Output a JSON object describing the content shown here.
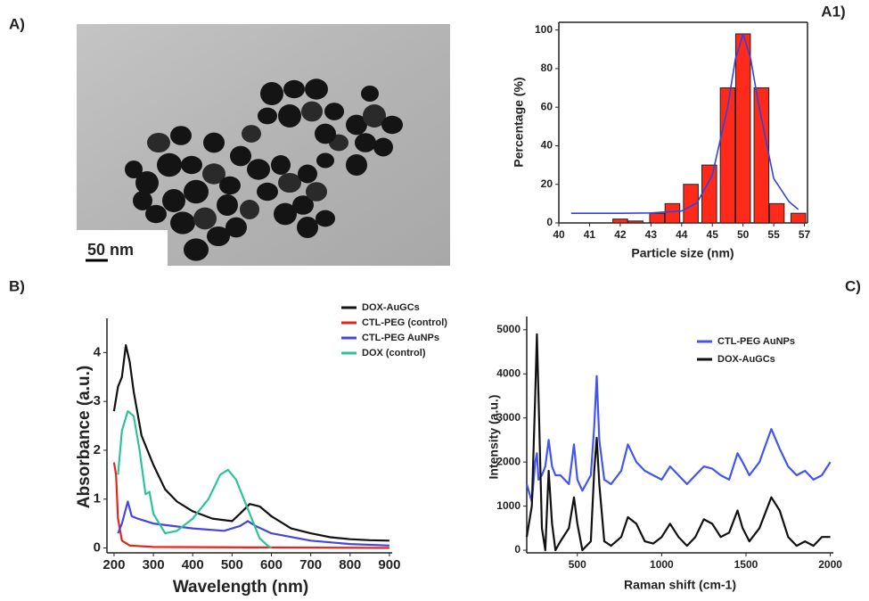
{
  "chart_data": [
    {
      "type": "image",
      "panel_label": "A)",
      "scale_bar": "50 nm"
    },
    {
      "type": "bar",
      "panel_label": "A1)",
      "x_label": "Particle size (nm)",
      "y_label": "Percentage (%)",
      "color": "#ff2a1a",
      "x": [
        2,
        2.5,
        3.2,
        3.7,
        4.3,
        4.9,
        5.5,
        6,
        6.6,
        7.1,
        7.8
      ],
      "values": [
        2,
        1,
        5,
        10,
        20,
        30,
        70,
        98,
        70,
        10,
        5
      ],
      "xlim": [
        0,
        8.1
      ],
      "xticks": [
        {
          "value": 0,
          "label": "40"
        },
        {
          "value": 1,
          "label": "41"
        },
        {
          "value": 2,
          "label": "42"
        },
        {
          "value": 3,
          "label": "43"
        },
        {
          "value": 4,
          "label": "44"
        },
        {
          "value": 5,
          "label": "45"
        },
        {
          "value": 6,
          "label": "50"
        },
        {
          "value": 7,
          "label": "55"
        },
        {
          "value": 8,
          "label": "57"
        }
      ],
      "ylim": [
        0,
        104
      ],
      "yticks": [
        0,
        20,
        40,
        60,
        80,
        100
      ],
      "fit": {
        "color": "#3344dd",
        "x": [
          0.4,
          2,
          3,
          4,
          4.5,
          5,
          5.5,
          5.75,
          6,
          6.25,
          6.5,
          7,
          7.5,
          7.8
        ],
        "values": [
          5,
          5,
          5.2,
          6.2,
          10.4,
          24.8,
          60,
          85,
          98,
          85,
          62,
          23,
          11,
          7
        ]
      }
    },
    {
      "type": "line",
      "panel_label": "B)",
      "x_label": "Wavelength (nm)",
      "y_label": "Absorbance (a.u.)",
      "xlim": [
        182,
        907
      ],
      "xticks": [
        200,
        300,
        400,
        500,
        600,
        700,
        800,
        900
      ],
      "ylim": [
        -0.1,
        4.7
      ],
      "yticks": [
        0,
        1,
        2,
        3,
        4
      ],
      "series": [
        {
          "name": "DOX-AuGCs",
          "color": "#111111",
          "x": [
            200,
            210,
            220,
            230,
            240,
            250,
            270,
            300,
            330,
            360,
            400,
            450,
            500,
            520,
            545,
            570,
            600,
            650,
            700,
            750,
            800,
            850,
            900
          ],
          "values": [
            2.8,
            3.3,
            3.5,
            4.15,
            3.8,
            3.2,
            2.3,
            1.7,
            1.2,
            0.95,
            0.75,
            0.6,
            0.55,
            0.7,
            0.9,
            0.85,
            0.65,
            0.4,
            0.3,
            0.22,
            0.18,
            0.16,
            0.15
          ]
        },
        {
          "name": "CTL-PEG (control)",
          "color": "#e8231c",
          "x": [
            200,
            205,
            210,
            220,
            240,
            300,
            900
          ],
          "values": [
            1.75,
            1.5,
            0.6,
            0.15,
            0.05,
            0.02,
            0
          ]
        },
        {
          "name": "CTL-PEG AuNPs",
          "color": "#4444e0",
          "x": [
            210,
            220,
            235,
            245,
            260,
            300,
            400,
            480,
            520,
            540,
            560,
            600,
            700,
            800,
            900
          ],
          "values": [
            0.3,
            0.5,
            0.95,
            0.65,
            0.6,
            0.5,
            0.4,
            0.35,
            0.45,
            0.55,
            0.45,
            0.3,
            0.15,
            0.08,
            0.05
          ]
        },
        {
          "name": "DOX (control)",
          "color": "#2dc39a",
          "x": [
            210,
            220,
            235,
            250,
            265,
            280,
            290,
            300,
            330,
            360,
            400,
            440,
            470,
            490,
            510,
            540,
            570,
            590,
            600
          ],
          "values": [
            1.5,
            2.4,
            2.8,
            2.7,
            2.0,
            1.1,
            1.15,
            0.7,
            0.3,
            0.35,
            0.6,
            1.0,
            1.5,
            1.6,
            1.4,
            0.8,
            0.2,
            0.05,
            0
          ]
        }
      ]
    },
    {
      "type": "line",
      "panel_label": "C)",
      "x_label": "Raman shift (cm-1)",
      "y_label": "Intensity (a.u.)",
      "xlim": [
        200,
        2018
      ],
      "xticks": [
        500,
        1000,
        1500,
        2000
      ],
      "ylim": [
        -60,
        5300
      ],
      "yticks": [
        0,
        1000,
        2000,
        3000,
        4000,
        5000
      ],
      "x": [
        200,
        230,
        250,
        260,
        270,
        290,
        310,
        330,
        350,
        370,
        400,
        450,
        480,
        500,
        530,
        580,
        600,
        615,
        630,
        660,
        700,
        760,
        800,
        850,
        900,
        950,
        1000,
        1050,
        1100,
        1150,
        1200,
        1250,
        1300,
        1350,
        1400,
        1450,
        1480,
        1520,
        1580,
        1650,
        1700,
        1750,
        1800,
        1850,
        1900,
        1950,
        2000
      ],
      "series": [
        {
          "name": "CTL-PEG AuNPs",
          "color": "#4455ee",
          "values": [
            1500,
            1100,
            2000,
            2200,
            1600,
            1700,
            1900,
            2500,
            1900,
            1700,
            1700,
            1500,
            2400,
            1600,
            1350,
            1700,
            2800,
            3950,
            2500,
            1600,
            1500,
            1800,
            2400,
            2000,
            1800,
            1700,
            1600,
            1900,
            1700,
            1500,
            1700,
            1900,
            1850,
            1700,
            1600,
            2200,
            2000,
            1700,
            2000,
            2750,
            2300,
            1900,
            1700,
            1800,
            1600,
            1700,
            2000
          ]
        },
        {
          "name": "DOX-AuGCs",
          "color": "#111111",
          "values": [
            300,
            1000,
            3500,
            4900,
            3500,
            500,
            0,
            1800,
            600,
            0,
            200,
            500,
            1200,
            600,
            0,
            200,
            1800,
            2550,
            1500,
            200,
            100,
            300,
            750,
            600,
            200,
            150,
            300,
            600,
            300,
            100,
            300,
            700,
            600,
            300,
            400,
            900,
            500,
            200,
            500,
            1200,
            900,
            300,
            100,
            200,
            100,
            300,
            300
          ]
        }
      ]
    }
  ]
}
